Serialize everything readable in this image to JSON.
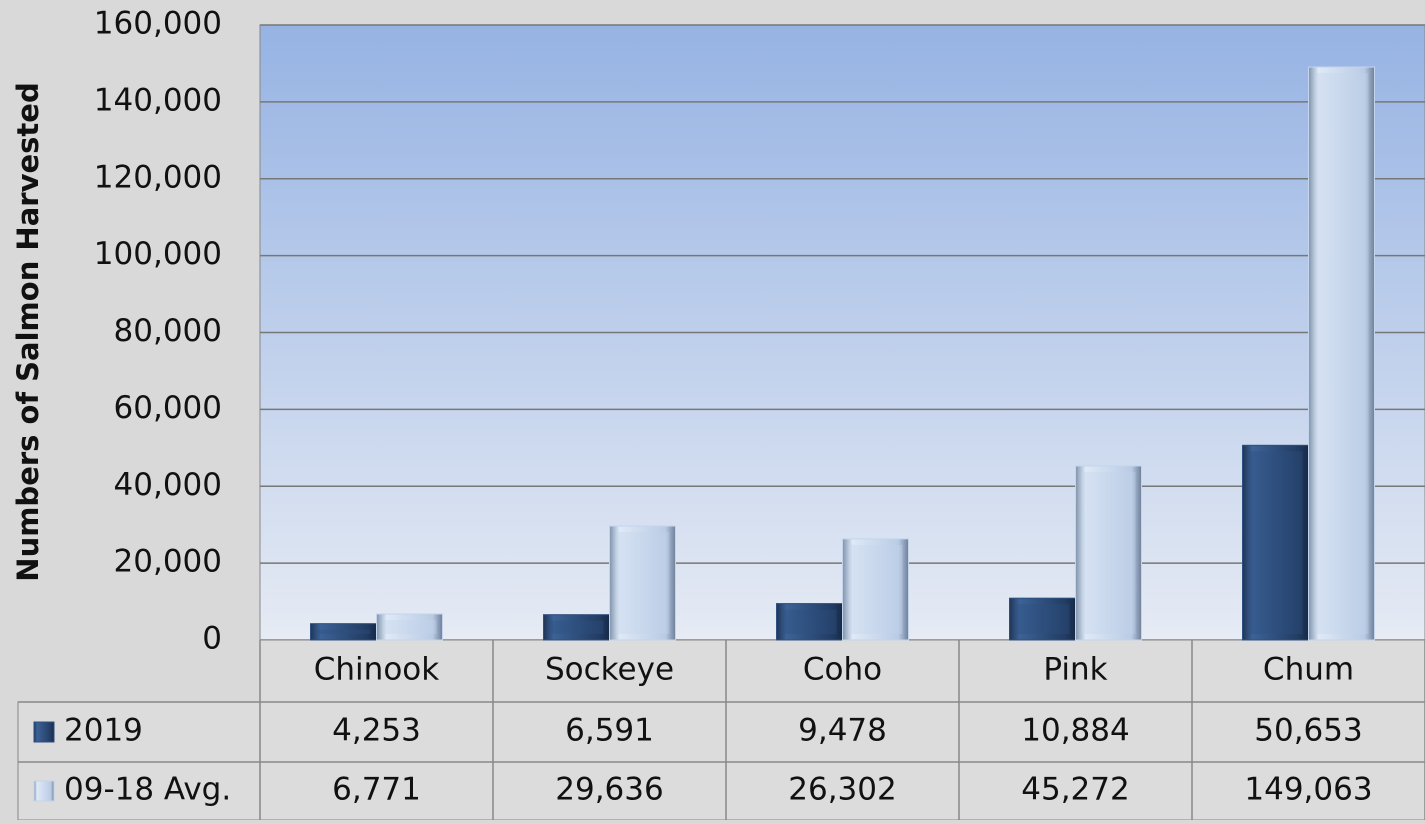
{
  "chart_data": {
    "type": "bar",
    "y_axis_label": "Numbers of Salmon Harvested",
    "categories": [
      "Chinook",
      "Sockeye",
      "Coho",
      "Pink",
      "Chum"
    ],
    "series": [
      {
        "name": "2019",
        "color": "#2e4f80",
        "values": [
          4253,
          6591,
          9478,
          10884,
          50653
        ],
        "value_labels": [
          "4,253",
          "6,591",
          "9,478",
          "10,884",
          "50,653"
        ]
      },
      {
        "name": "09-18 Avg.",
        "color": "#c3d4ec",
        "values": [
          6771,
          29636,
          26302,
          45272,
          149063
        ],
        "value_labels": [
          "6,771",
          "29,636",
          "26,302",
          "45,272",
          "149,063"
        ]
      }
    ],
    "ylim": [
      0,
      160000
    ],
    "yticks": [
      0,
      {
        "value": 20000,
        "label": "20,000"
      },
      {
        "value": 40000,
        "label": "40,000"
      },
      {
        "value": 60000,
        "label": "60,000"
      },
      {
        "value": 80000,
        "label": "80,000"
      },
      {
        "value": 100000,
        "label": "100,000"
      },
      {
        "value": 120000,
        "label": "120,000"
      },
      {
        "value": 140000,
        "label": "140,000"
      },
      {
        "value": 160000,
        "label": "160,000"
      }
    ],
    "grid": true
  }
}
